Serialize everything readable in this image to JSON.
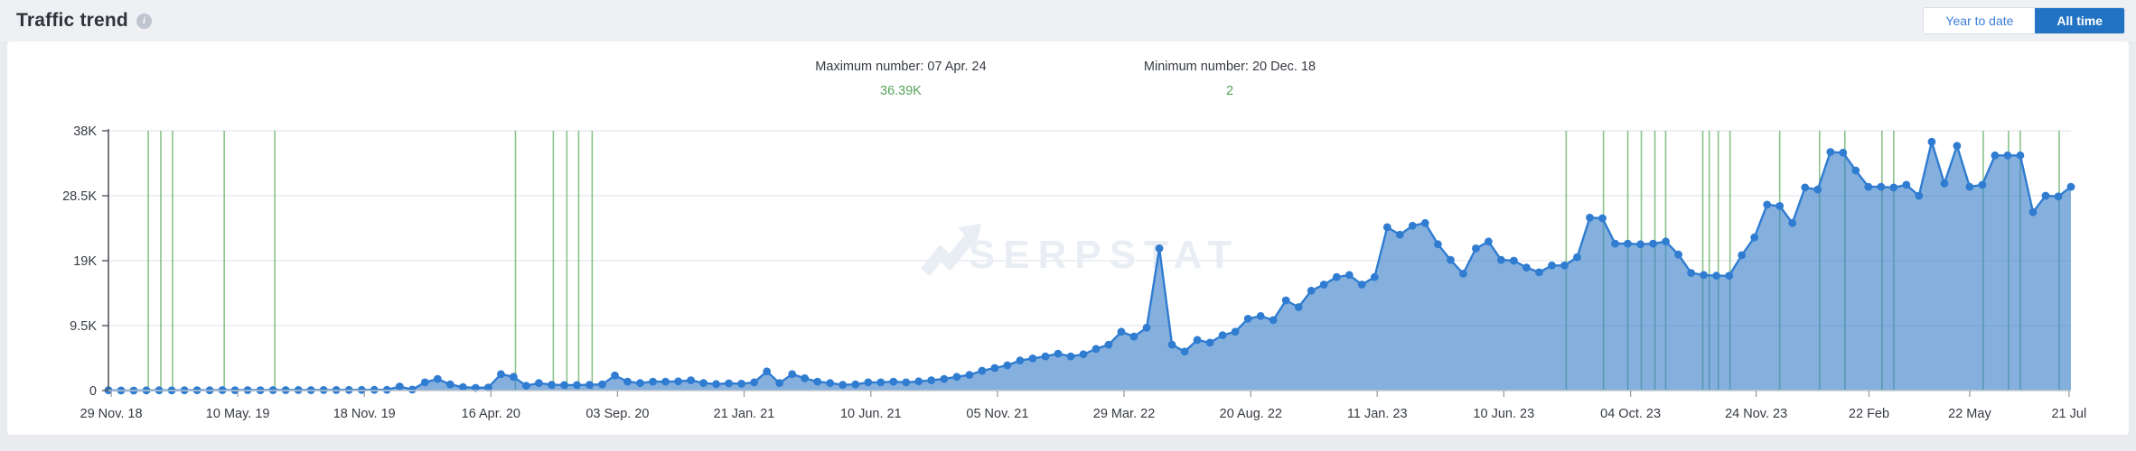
{
  "header": {
    "title": "Traffic trend"
  },
  "toolbar": {
    "year_to_date_label": "Year to date",
    "all_time_label": "All time",
    "active": "All time",
    "active_color": "#2273c4"
  },
  "stats": {
    "max_label": "Maximum number: 07 Apr. 24",
    "max_value": "36.39K",
    "min_label": "Minimum number: 20 Dec. 18",
    "min_value": "2",
    "value_color": "#57a359"
  },
  "watermark": "SERPSTAT",
  "chart_data": {
    "type": "area",
    "title": "Traffic trend",
    "xlabel": "",
    "ylabel": "",
    "ylim": [
      0,
      38000
    ],
    "grid": true,
    "legend": "none",
    "y_ticks": [
      {
        "label": "0",
        "value": 0
      },
      {
        "label": "9.5K",
        "value": 9500
      },
      {
        "label": "19K",
        "value": 19000
      },
      {
        "label": "28.5K",
        "value": 28500
      },
      {
        "label": "38K",
        "value": 38000
      }
    ],
    "x_ticks": [
      {
        "label": "29 Nov. 18",
        "f": 0.0014
      },
      {
        "label": "10 May. 19",
        "f": 0.0659
      },
      {
        "label": "18 Nov. 19",
        "f": 0.1304
      },
      {
        "label": "16 Apr. 20",
        "f": 0.1949
      },
      {
        "label": "03 Sep. 20",
        "f": 0.2594
      },
      {
        "label": "21 Jan. 21",
        "f": 0.3239
      },
      {
        "label": "10 Jun. 21",
        "f": 0.3885
      },
      {
        "label": "05 Nov. 21",
        "f": 0.453
      },
      {
        "label": "29 Mar. 22",
        "f": 0.5175
      },
      {
        "label": "20 Aug. 22",
        "f": 0.5821
      },
      {
        "label": "11 Jan. 23",
        "f": 0.6465
      },
      {
        "label": "10 Jun. 23",
        "f": 0.711
      },
      {
        "label": "04 Oct. 23",
        "f": 0.7756
      },
      {
        "label": "24 Nov. 23",
        "f": 0.8396
      },
      {
        "label": "22 Feb",
        "f": 0.8971
      },
      {
        "label": "22 May",
        "f": 0.9484
      },
      {
        "label": "21 Jul",
        "f": 0.999
      }
    ],
    "max_point": {
      "date": "07 Apr. 24",
      "value": 36390
    },
    "min_point": {
      "date": "20 Dec. 18",
      "value": 2
    },
    "values": [
      50,
      10,
      2,
      25,
      40,
      30,
      45,
      55,
      40,
      60,
      50,
      65,
      55,
      70,
      60,
      75,
      70,
      85,
      80,
      95,
      90,
      100,
      110,
      600,
      150,
      1200,
      1700,
      900,
      500,
      400,
      450,
      2400,
      2000,
      700,
      1100,
      850,
      800,
      800,
      850,
      900,
      2200,
      1300,
      1100,
      1300,
      1300,
      1350,
      1500,
      1100,
      950,
      1050,
      1000,
      1200,
      2800,
      1100,
      2400,
      1800,
      1300,
      1100,
      850,
      900,
      1200,
      1200,
      1300,
      1200,
      1350,
      1500,
      1700,
      2000,
      2300,
      2900,
      3300,
      3700,
      4400,
      4700,
      5000,
      5400,
      5000,
      5300,
      6100,
      6700,
      8600,
      7900,
      9200,
      20800,
      6700,
      5700,
      7400,
      7000,
      8100,
      8600,
      10500,
      10900,
      10300,
      13200,
      12200,
      14600,
      15500,
      16600,
      16900,
      15500,
      16600,
      23900,
      22800,
      24100,
      24500,
      21400,
      19100,
      17100,
      20800,
      21800,
      19100,
      19000,
      18000,
      17300,
      18300,
      18300,
      19500,
      25300,
      25200,
      21500,
      21500,
      21400,
      21500,
      21800,
      19900,
      17200,
      16900,
      16800,
      16800,
      19800,
      22400,
      27200,
      27000,
      24500,
      29700,
      29400,
      34900,
      34800,
      32200,
      29800,
      29800,
      29700,
      30100,
      28500,
      36390,
      30300,
      35800,
      29800,
      30100,
      34400,
      34400,
      34400,
      26100,
      28500,
      28400,
      29800
    ],
    "event_lines": [
      0.0203,
      0.0267,
      0.0327,
      0.059,
      0.0848,
      0.2074,
      0.2267,
      0.2336,
      0.2396,
      0.2465,
      0.7428,
      0.7618,
      0.7742,
      0.7811,
      0.788,
      0.7935,
      0.8124,
      0.8157,
      0.8203,
      0.8263,
      0.8516,
      0.8719,
      0.8848,
      0.9037,
      0.9097,
      0.9553,
      0.9682,
      0.9742,
      0.994
    ],
    "colors": {
      "series": "#2f7cd1",
      "area": "rgba(58,128,202,0.62)",
      "event_line": "#6eb46e",
      "grid": "#e3e7f0",
      "axis": "#53575c",
      "baseline": "#c2c6cc",
      "tick": "#9aa0a8",
      "tick_label": "#363b42",
      "watermark": "#e9edf4"
    }
  }
}
